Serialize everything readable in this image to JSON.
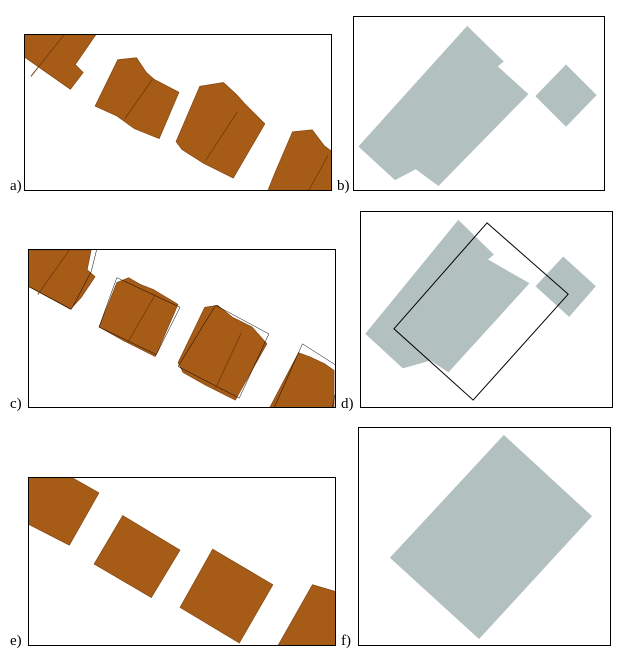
{
  "panels": [
    {
      "label": "a)"
    },
    {
      "label": "b)"
    },
    {
      "label": "c)"
    },
    {
      "label": "d)"
    },
    {
      "label": "e)"
    },
    {
      "label": "f)"
    }
  ],
  "colors": {
    "roof_fill": "#A65C16",
    "roof_edge": "#7A3E0A",
    "footprint_fill": "#B3C0C0",
    "outline_stroke": "#000000",
    "panel_border": "#000000"
  }
}
